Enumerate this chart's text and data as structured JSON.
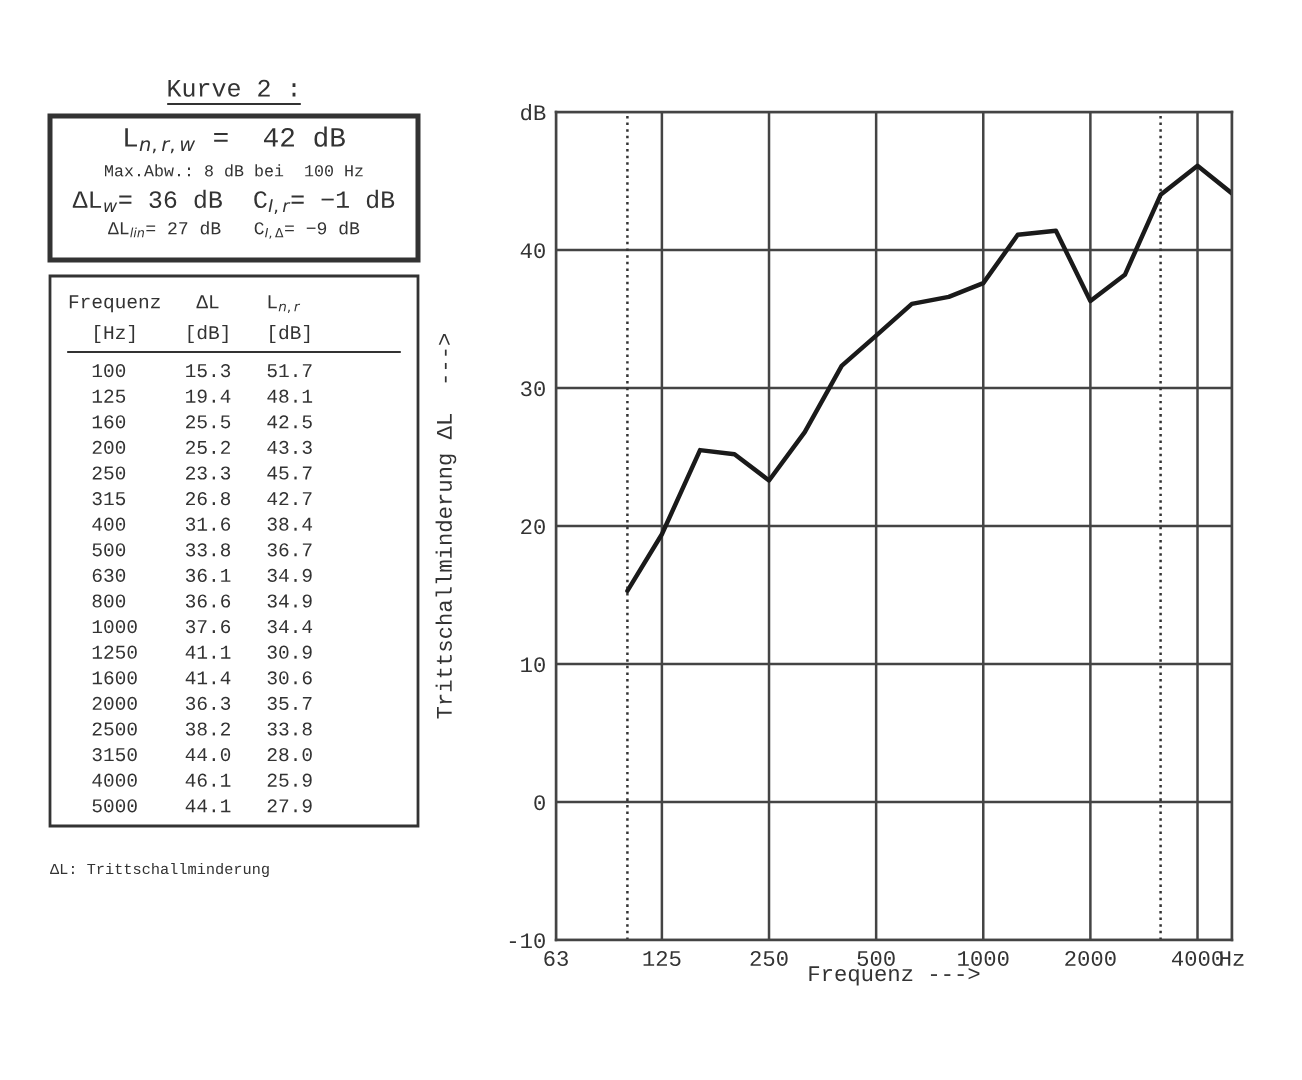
{
  "chart_data": [
    {
      "type": "other",
      "title": "Kurve 2 :",
      "annotations": [
        "L$_{n,r,w}$ =  42 dB",
        "Max.Abw.: 8 dB bei  100 Hz",
        "ΔL$_{w}$= 36 dB  C$_{I,r}$= −1 dB",
        "ΔL$_{lin}$= 27 dB   C$_{I,Δ}$= −9 dB",
        "Frequenz   ΔL    L$_{n,r}$",
        "  [Hz]    [dB]   [dB]",
        "  100     15.3   51.7",
        "  125     19.4   48.1",
        "  160     25.5   42.5",
        "  200     25.2   43.3",
        "  250     23.3   45.7",
        "  315     26.8   42.7",
        "  400     31.6   38.4",
        "  500     33.8   36.7",
        "  630     36.1   34.9",
        "  800     36.6   34.9",
        "  1000    37.6   34.4",
        "  1250    41.1   30.9",
        "  1600    41.4   30.6",
        "  2000    36.3   35.7",
        "  2500    38.2   33.8",
        "  3150    44.0   28.0",
        "  4000    46.1   25.9",
        "  5000    44.1   27.9",
        "ΔL: Trittschallminderung"
      ]
    },
    {
      "type": "line",
      "xlabel": "Frequenz --->",
      "ylabel": "Trittschallminderung ΔL  --->",
      "log": "x",
      "x": [
        100,
        125,
        160,
        200,
        250,
        315,
        400,
        500,
        630,
        800,
        1000,
        1250,
        1600,
        2000,
        2500,
        3150,
        4000,
        5000
      ],
      "series": [
        {
          "color": "#1a1a1a",
          "values": [
            15.3,
            19.4,
            25.5,
            25.2,
            23.3,
            26.8,
            31.6,
            33.8,
            36.1,
            36.6,
            37.6,
            41.1,
            41.4,
            36.3,
            38.2,
            44.0,
            46.1,
            44.1
          ]
        }
      ],
      "xlim": [
        63,
        5000
      ],
      "ylim": [
        -10,
        50
      ],
      "xticks": [
        63,
        125,
        250,
        500,
        1000,
        2000,
        4000,
        {
          "value": 5000,
          "label": "Hz"
        }
      ],
      "yticks": [
        -10,
        0,
        10,
        20,
        30,
        40,
        {
          "value": 50,
          "label": "dB"
        }
      ],
      "grid": true,
      "marker": "none",
      "line_style": "solid",
      "ref_lines": [
        {
          "axis": "x",
          "value": 100,
          "line_style": "dotted",
          "color": "#333333"
        },
        {
          "axis": "x",
          "value": 3150,
          "line_style": "dotted",
          "color": "#333333"
        }
      ]
    }
  ]
}
